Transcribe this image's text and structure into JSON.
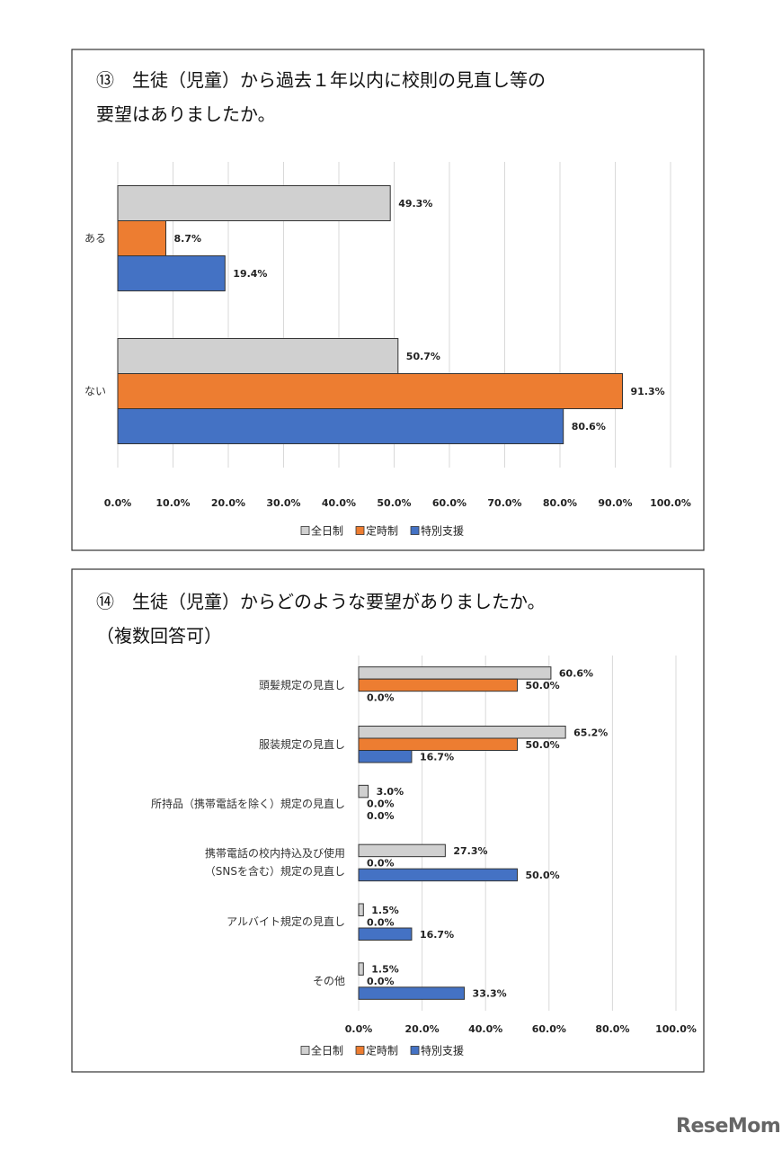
{
  "chart_data": [
    {
      "type": "barh",
      "title": "⑬　生徒（児童）から過去１年以内に校則の見直し等の\n要望はありましたか。",
      "categories": [
        "ある",
        "ない"
      ],
      "series": [
        {
          "name": "全日制",
          "color": "#d0d0d0",
          "values": [
            49.3,
            50.7
          ],
          "value_labels": [
            "49.3%",
            "50.7%"
          ]
        },
        {
          "name": "定時制",
          "color": "#ed7d31",
          "values": [
            8.7,
            91.3
          ],
          "value_labels": [
            "8.7%",
            "91.3%"
          ]
        },
        {
          "name": "特別支援",
          "color": "#4472c4",
          "values": [
            19.4,
            80.6
          ],
          "value_labels": [
            "19.4%",
            "80.6%"
          ]
        }
      ],
      "xlim": [
        0,
        100
      ],
      "xticks": [
        {
          "value": 0,
          "label": "0.0%"
        },
        {
          "value": 10,
          "label": "10.0%"
        },
        {
          "value": 20,
          "label": "20.0%"
        },
        {
          "value": 30,
          "label": "30.0%"
        },
        {
          "value": 40,
          "label": "40.0%"
        },
        {
          "value": 50,
          "label": "50.0%"
        },
        {
          "value": 60,
          "label": "60.0%"
        },
        {
          "value": 70,
          "label": "70.0%"
        },
        {
          "value": 80,
          "label": "80.0%"
        },
        {
          "value": 90,
          "label": "90.0%"
        },
        {
          "value": 100,
          "label": "100.0%"
        }
      ],
      "grid": true,
      "legend": "bottom"
    },
    {
      "type": "barh",
      "title": "⑭　生徒（児童）からどのような要望がありましたか。\n（複数回答可）",
      "categories": [
        "頭髪規定の見直し",
        "服装規定の見直し",
        "所持品（携帯電話を除く）規定の見直し",
        "携帯電話の校内持込及び使用\n（SNSを含む）規定の見直し",
        "アルバイト規定の見直し",
        "その他"
      ],
      "series": [
        {
          "name": "全日制",
          "color": "#d0d0d0",
          "values": [
            60.6,
            65.2,
            3.0,
            27.3,
            1.5,
            1.5
          ],
          "value_labels": [
            "60.6%",
            "65.2%",
            "3.0%",
            "27.3%",
            "1.5%",
            "1.5%"
          ]
        },
        {
          "name": "定時制",
          "color": "#ed7d31",
          "values": [
            50.0,
            50.0,
            0.0,
            0.0,
            0.0,
            0.0
          ],
          "value_labels": [
            "50.0%",
            "50.0%",
            "0.0%",
            "0.0%",
            "0.0%",
            "0.0%"
          ]
        },
        {
          "name": "特別支援",
          "color": "#4472c4",
          "values": [
            0.0,
            16.7,
            0.0,
            50.0,
            16.7,
            33.3
          ],
          "value_labels": [
            "0.0%",
            "16.7%",
            "0.0%",
            "50.0%",
            "16.7%",
            "33.3%"
          ]
        }
      ],
      "xlim": [
        0,
        100
      ],
      "xticks": [
        {
          "value": 0,
          "label": "0.0%"
        },
        {
          "value": 20,
          "label": "20.0%"
        },
        {
          "value": 40,
          "label": "40.0%"
        },
        {
          "value": 60,
          "label": "60.0%"
        },
        {
          "value": 80,
          "label": "80.0%"
        },
        {
          "value": 100,
          "label": "100.0%"
        }
      ],
      "grid": true,
      "legend": "bottom"
    }
  ],
  "watermark": "ReseMom"
}
